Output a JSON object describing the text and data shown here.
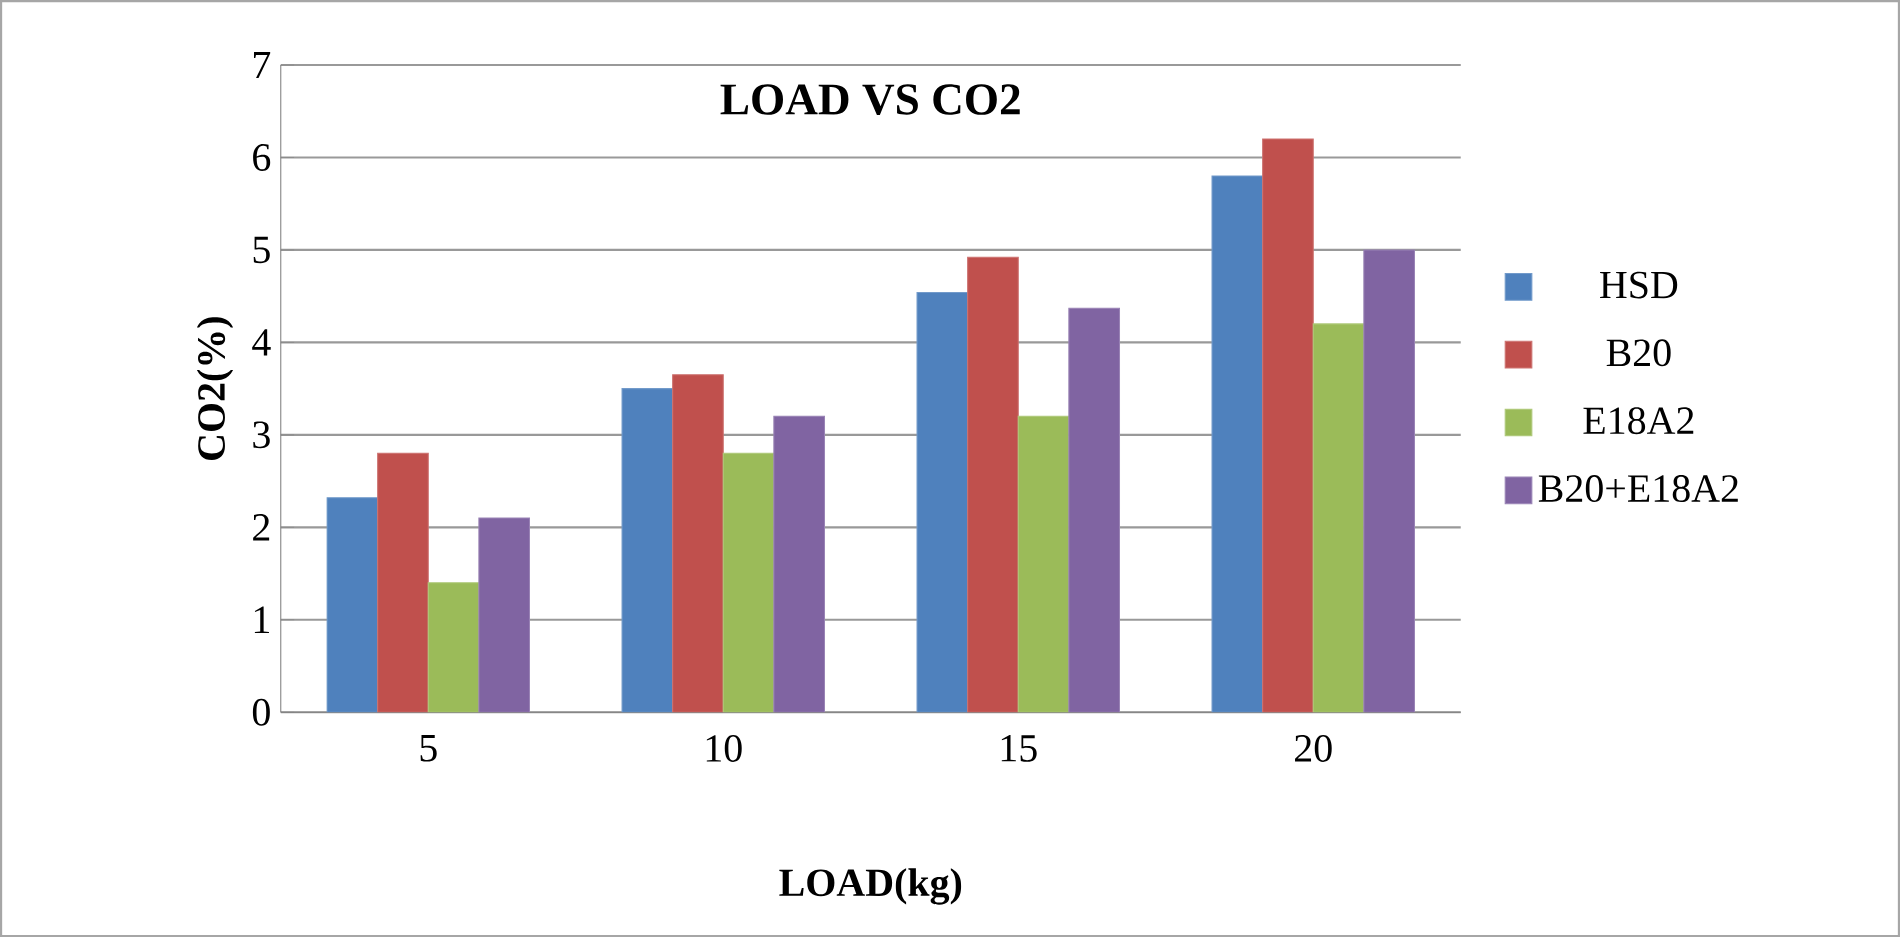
{
  "chart_data": {
    "type": "bar",
    "title": "LOAD VS CO2",
    "xlabel": "LOAD(kg)",
    "ylabel": "CO2(%)",
    "categories": [
      "5",
      "10",
      "15",
      "20"
    ],
    "series": [
      {
        "name": "HSD",
        "color": "#4f81bd",
        "values": [
          2.32,
          3.5,
          4.54,
          5.8
        ]
      },
      {
        "name": "B20",
        "color": "#c0504d",
        "values": [
          2.8,
          3.65,
          4.92,
          6.2
        ]
      },
      {
        "name": "E18A2",
        "color": "#9bbb59",
        "values": [
          1.4,
          2.8,
          3.2,
          4.2
        ]
      },
      {
        "name": "B20+E18A2",
        "color": "#8064a2",
        "values": [
          2.1,
          3.2,
          4.37,
          5.0
        ]
      }
    ],
    "ylim": [
      0,
      7
    ],
    "yticks": [
      0,
      1,
      2,
      3,
      4,
      5,
      6,
      7
    ],
    "grid": "y",
    "legend": "right"
  }
}
